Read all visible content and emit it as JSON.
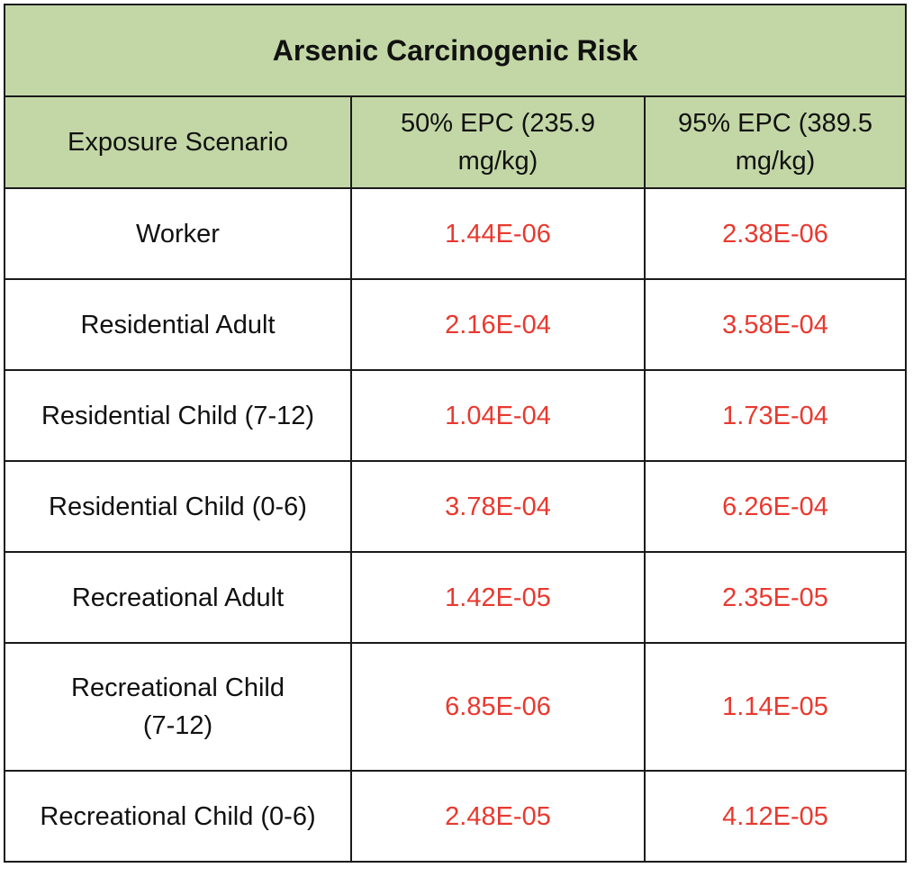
{
  "table": {
    "title": "Arsenic Carcinogenic Risk",
    "headers": [
      "Exposure Scenario",
      "50% EPC (235.9 mg/kg)",
      "95% EPC (389.5 mg/kg)"
    ],
    "rows": [
      {
        "scenario": "Worker",
        "epc50": "1.44E-06",
        "epc95": "2.38E-06"
      },
      {
        "scenario": "Residential Adult",
        "epc50": "2.16E-04",
        "epc95": "3.58E-04"
      },
      {
        "scenario": "Residential Child (7-12)",
        "epc50": "1.04E-04",
        "epc95": "1.73E-04"
      },
      {
        "scenario": "Residential Child (0-6)",
        "epc50": "3.78E-04",
        "epc95": "6.26E-04"
      },
      {
        "scenario": "Recreational Adult",
        "epc50": "1.42E-05",
        "epc95": "2.35E-05"
      },
      {
        "scenario": "Recreational Child (7-12)",
        "epc50": "6.85E-06",
        "epc95": "1.14E-05"
      },
      {
        "scenario": "Recreational Child (0-6)",
        "epc50": "2.48E-05",
        "epc95": "4.12E-05"
      }
    ]
  },
  "colors": {
    "header_bg": "#c3d7a6",
    "risk_value": "#e8392f",
    "border": "#1a1a1a"
  }
}
